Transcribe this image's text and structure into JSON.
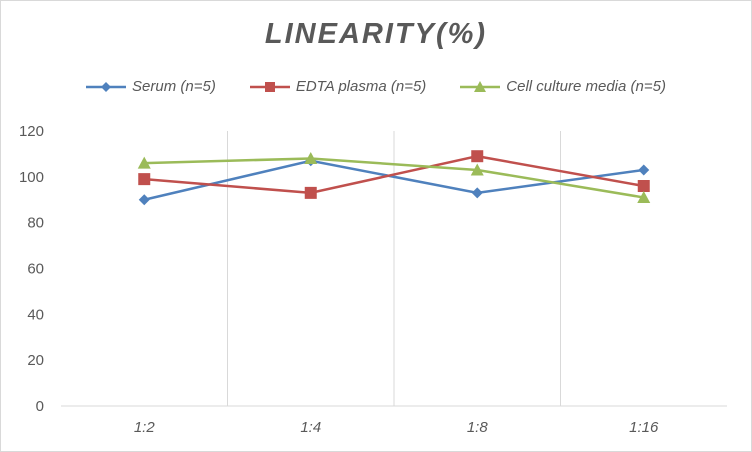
{
  "chart_data": {
    "type": "line",
    "title": "LINEARITY(%)",
    "categories": [
      "1:2",
      "1:4",
      "1:8",
      "1:16"
    ],
    "ylim": [
      0,
      120
    ],
    "yticks": [
      0,
      20,
      40,
      60,
      80,
      100,
      120
    ],
    "grid": "vertical",
    "legend_position": "top",
    "series": [
      {
        "name": "Serum (n=5)",
        "color": "#4f81bd",
        "marker": "diamond",
        "values": [
          90,
          107,
          93,
          103
        ]
      },
      {
        "name": "EDTA plasma (n=5)",
        "color": "#c0504d",
        "marker": "square",
        "values": [
          99,
          93,
          109,
          96
        ]
      },
      {
        "name": "Cell culture media (n=5)",
        "color": "#9bbb59",
        "marker": "triangle",
        "values": [
          106,
          108,
          103,
          91
        ]
      }
    ]
  }
}
